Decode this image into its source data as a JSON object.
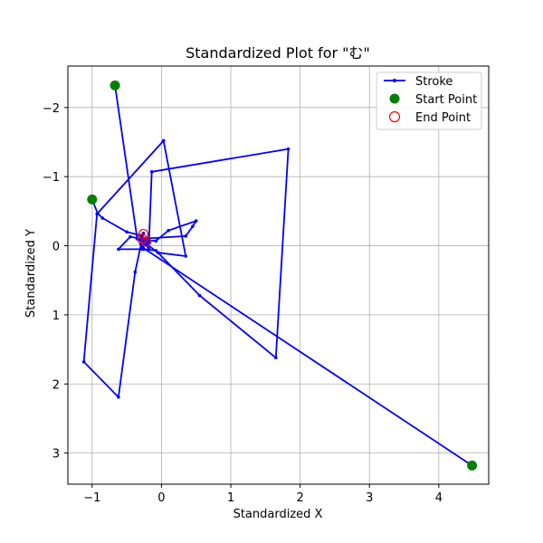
{
  "chart_data": {
    "type": "line",
    "title": "Standardized Plot for \"む\"",
    "xlabel": "Standardized X",
    "ylabel": "Standardized Y",
    "xlim": [
      -1.35,
      4.72
    ],
    "ylim": [
      3.45,
      -2.6
    ],
    "y_inverted": true,
    "grid": true,
    "legend_position": "top-right",
    "xticks": [
      "−1",
      "0",
      "1",
      "2",
      "3",
      "4"
    ],
    "xtick_values": [
      -1,
      0,
      1,
      2,
      3,
      4
    ],
    "yticks": [
      "−2",
      "−1",
      "0",
      "1",
      "2",
      "3"
    ],
    "ytick_values": [
      -2,
      -1,
      0,
      1,
      2,
      3
    ],
    "legend": {
      "stroke": "Stroke",
      "start": "Start Point",
      "end": "End Point"
    },
    "colors": {
      "stroke": "#0000ff",
      "start": "#008000",
      "end": "#ff0000",
      "grid": "#b0b0b0"
    },
    "series": [
      {
        "name": "Stroke",
        "strokes": [
          [
            {
              "x": -1.0,
              "y": -0.67
            },
            {
              "x": -0.92,
              "y": -0.47
            },
            {
              "x": -0.85,
              "y": -0.4
            },
            {
              "x": -0.5,
              "y": -0.2
            },
            {
              "x": -0.3,
              "y": -0.15
            },
            {
              "x": -0.27,
              "y": -0.1
            },
            {
              "x": -0.25,
              "y": -0.06
            },
            {
              "x": -0.2,
              "y": -0.04
            },
            {
              "x": -0.28,
              "y": 0.02
            },
            {
              "x": 4.48,
              "y": 3.18
            }
          ],
          [
            {
              "x": -0.67,
              "y": -2.32
            },
            {
              "x": -0.35,
              "y": -0.1
            },
            {
              "x": -0.27,
              "y": -0.05
            },
            {
              "x": -0.25,
              "y": 0.05
            },
            {
              "x": -0.08,
              "y": 0.07
            },
            {
              "x": 0.55,
              "y": 0.72
            },
            {
              "x": 1.65,
              "y": 1.62
            },
            {
              "x": 1.83,
              "y": -1.4
            },
            {
              "x": -0.14,
              "y": -1.07
            },
            {
              "x": -0.18,
              "y": -0.05
            },
            {
              "x": -0.3,
              "y": -0.03
            },
            {
              "x": -0.28,
              "y": 0.05
            },
            {
              "x": -0.62,
              "y": 0.05
            },
            {
              "x": -0.45,
              "y": -0.13
            },
            {
              "x": -0.3,
              "y": -0.1
            },
            {
              "x": 0.35,
              "y": -0.14
            },
            {
              "x": 0.45,
              "y": -0.28
            },
            {
              "x": 0.5,
              "y": -0.36
            },
            {
              "x": 0.1,
              "y": -0.22
            },
            {
              "x": -0.08,
              "y": -0.07
            },
            {
              "x": -0.25,
              "y": -0.08
            }
          ],
          [
            {
              "x": -0.26,
              "y": -0.18
            },
            {
              "x": -0.38,
              "y": 0.38
            },
            {
              "x": -0.62,
              "y": 2.19
            },
            {
              "x": -1.12,
              "y": 1.68
            },
            {
              "x": -0.93,
              "y": -0.46
            },
            {
              "x": 0.03,
              "y": -1.52
            },
            {
              "x": 0.35,
              "y": 0.15
            },
            {
              "x": -0.05,
              "y": 0.1
            },
            {
              "x": -0.25,
              "y": -0.05
            },
            {
              "x": -0.18,
              "y": 0.05
            },
            {
              "x": -0.22,
              "y": -0.1
            }
          ]
        ]
      }
    ],
    "start_points": [
      {
        "x": -0.67,
        "y": -2.32
      },
      {
        "x": -1.0,
        "y": -0.67
      },
      {
        "x": 4.48,
        "y": 3.18
      }
    ],
    "end_points": [
      {
        "x": -0.26,
        "y": -0.17
      },
      {
        "x": -0.28,
        "y": -0.1
      },
      {
        "x": -0.22,
        "y": -0.06
      }
    ]
  }
}
